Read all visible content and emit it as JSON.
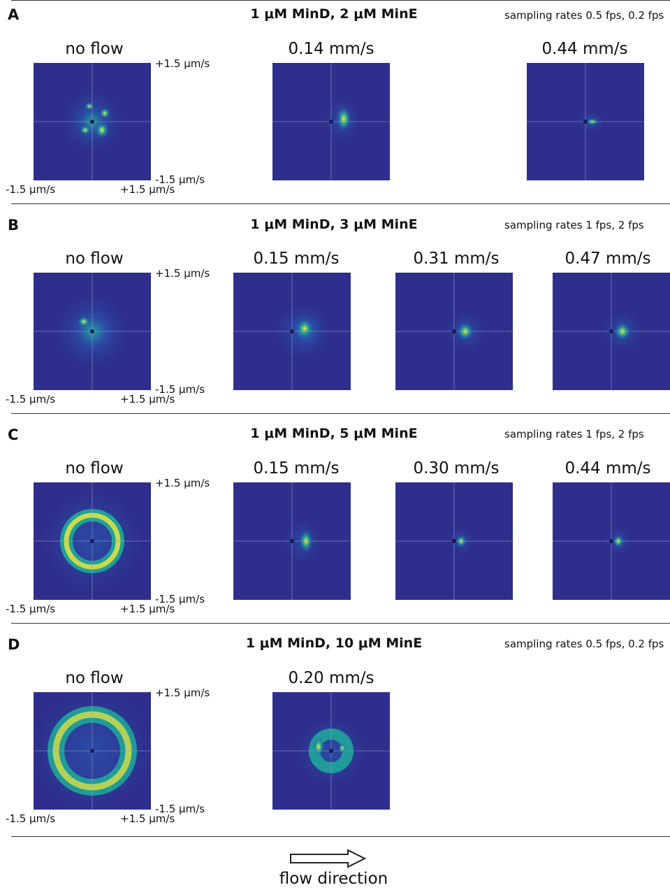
{
  "panels": [
    {
      "letter": "A",
      "title": "1 μM MinD, 2 μM MinE",
      "rates": "sampling rates 0.5 fps, 0.2 fps",
      "maps": [
        {
          "label": "no flow",
          "pattern": "cluster-ring"
        },
        {
          "label": "0.14 mm/s",
          "pattern": "patch-right"
        },
        {
          "label": "0.44 mm/s",
          "pattern": "tight-right"
        }
      ]
    },
    {
      "letter": "B",
      "title": "1 μM MinD, 3 μM MinE",
      "rates": "sampling rates 1 fps, 2 fps",
      "maps": [
        {
          "label": "no flow",
          "pattern": "diffuse-disk"
        },
        {
          "label": "0.15 mm/s",
          "pattern": "blob-right"
        },
        {
          "label": "0.31 mm/s",
          "pattern": "blob-right-small"
        },
        {
          "label": "0.47 mm/s",
          "pattern": "blob-right-small"
        }
      ]
    },
    {
      "letter": "C",
      "title": "1 μM MinD, 5 μM MinE",
      "rates": "sampling rates 1 fps, 2 fps",
      "maps": [
        {
          "label": "no flow",
          "pattern": "ring"
        },
        {
          "label": "0.15 mm/s",
          "pattern": "crescent-right"
        },
        {
          "label": "0.30 mm/s",
          "pattern": "spot-right"
        },
        {
          "label": "0.44 mm/s",
          "pattern": "spot-right"
        }
      ]
    },
    {
      "letter": "D",
      "title": "1 μM MinD, 10 μM MinE",
      "rates": "sampling rates 0.5 fps, 0.2 fps",
      "maps": [
        {
          "label": "no flow",
          "pattern": "big-ring"
        },
        {
          "label": "0.20 mm/s",
          "pattern": "ring-small"
        }
      ]
    }
  ],
  "axis_ticks": {
    "y_top": "+1.5 μm/s",
    "y_bottom": "-1.5 μm/s",
    "x_left": "-1.5 μm/s",
    "x_right": "+1.5 μm/s"
  },
  "flow_label": "flow direction",
  "colors": {
    "background": "#2e2f8c",
    "low": "#2a4ea8",
    "mid": "#1fa59a",
    "high": "#f4e83a",
    "crosshair": "#9a9ad0"
  }
}
